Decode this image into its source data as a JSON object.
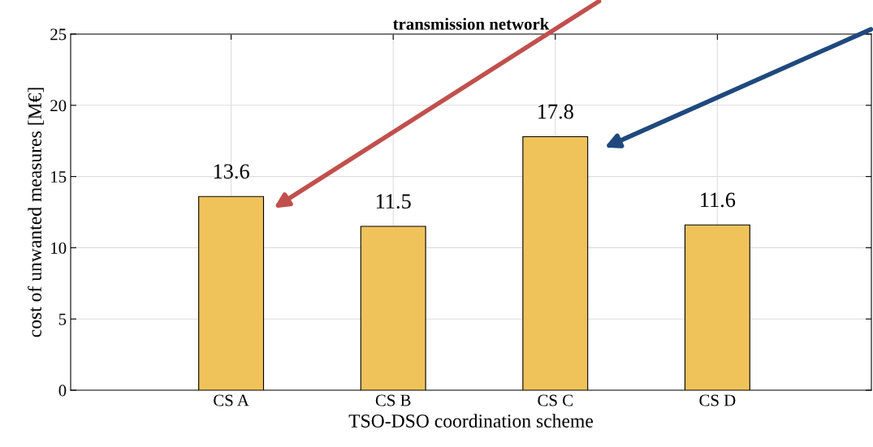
{
  "chart_data": {
    "type": "bar",
    "title": "transmission network",
    "xlabel": "TSO-DSO coordination scheme",
    "ylabel": "cost of unwanted measures [M€]",
    "categories": [
      "CS A",
      "CS B",
      "CS C",
      "CS D"
    ],
    "values": [
      13.6,
      11.5,
      17.8,
      11.6
    ],
    "color": "#f0c35a",
    "ylim": [
      0,
      25
    ],
    "yticks": [
      0,
      5,
      10,
      15,
      20,
      25
    ],
    "grid": true,
    "data_labels": true
  }
}
